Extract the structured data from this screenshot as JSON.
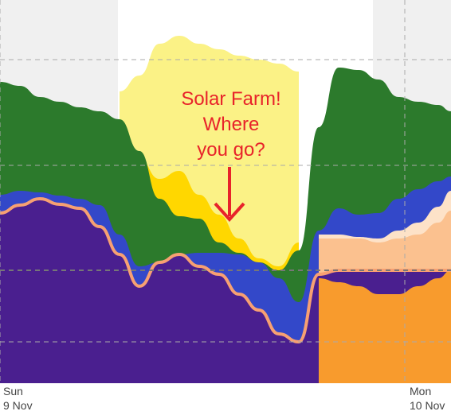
{
  "chart_data": {
    "type": "area",
    "title": "",
    "xlabel": "",
    "ylabel": "",
    "grid": true,
    "night_shading": true,
    "x_ticks": [
      {
        "line1": "Sun",
        "line2": "9 Nov"
      },
      {
        "line1": "Mon",
        "line2": "10 Nov"
      }
    ],
    "annotation": {
      "lines": [
        "Solar Farm!",
        "Where",
        "you go?"
      ],
      "color": "#e8232a"
    },
    "colors": {
      "wind": "#2c7a2c",
      "solar_farm": "#fbf286",
      "solar_rooftop": "#ffd700",
      "hydro": "#3348c9",
      "battery": "#4a1f8f",
      "batt_outline": "#f7a072",
      "export1": "#f89b2d",
      "export2": "#fbc18f",
      "export3": "#fde2c8",
      "shade": "#f0f0f0",
      "grid": "#aaaaaa"
    }
  }
}
